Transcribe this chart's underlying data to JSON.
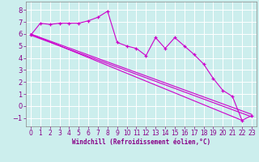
{
  "xlabel": "Windchill (Refroidissement éolien,°C)",
  "background_color": "#cceeed",
  "line_color": "#cc00cc",
  "grid_color": "#aadddd",
  "xlim": [
    -0.5,
    23.5
  ],
  "ylim": [
    -1.7,
    8.7
  ],
  "xticks": [
    0,
    1,
    2,
    3,
    4,
    5,
    6,
    7,
    8,
    9,
    10,
    11,
    12,
    13,
    14,
    15,
    16,
    17,
    18,
    19,
    20,
    21,
    22,
    23
  ],
  "yticks": [
    -1,
    0,
    1,
    2,
    3,
    4,
    5,
    6,
    7,
    8
  ],
  "series1_x": [
    0,
    1,
    2,
    3,
    4,
    5,
    6,
    7,
    8,
    9,
    10,
    11,
    12,
    13,
    14,
    15,
    16,
    17,
    18,
    19,
    20,
    21,
    22,
    23
  ],
  "series1_y": [
    5.9,
    6.9,
    6.8,
    6.9,
    6.9,
    6.9,
    7.1,
    7.4,
    7.9,
    5.3,
    5.0,
    4.8,
    4.2,
    5.7,
    4.8,
    5.7,
    5.0,
    4.3,
    3.5,
    2.3,
    1.3,
    0.8,
    -1.2,
    -0.8
  ],
  "series2_x": [
    0,
    22
  ],
  "series2_y": [
    6.0,
    -1.2
  ],
  "series3_x": [
    0,
    23
  ],
  "series3_y": [
    6.0,
    -0.7
  ],
  "series4_x": [
    0,
    23
  ],
  "series4_y": [
    5.9,
    -0.9
  ]
}
